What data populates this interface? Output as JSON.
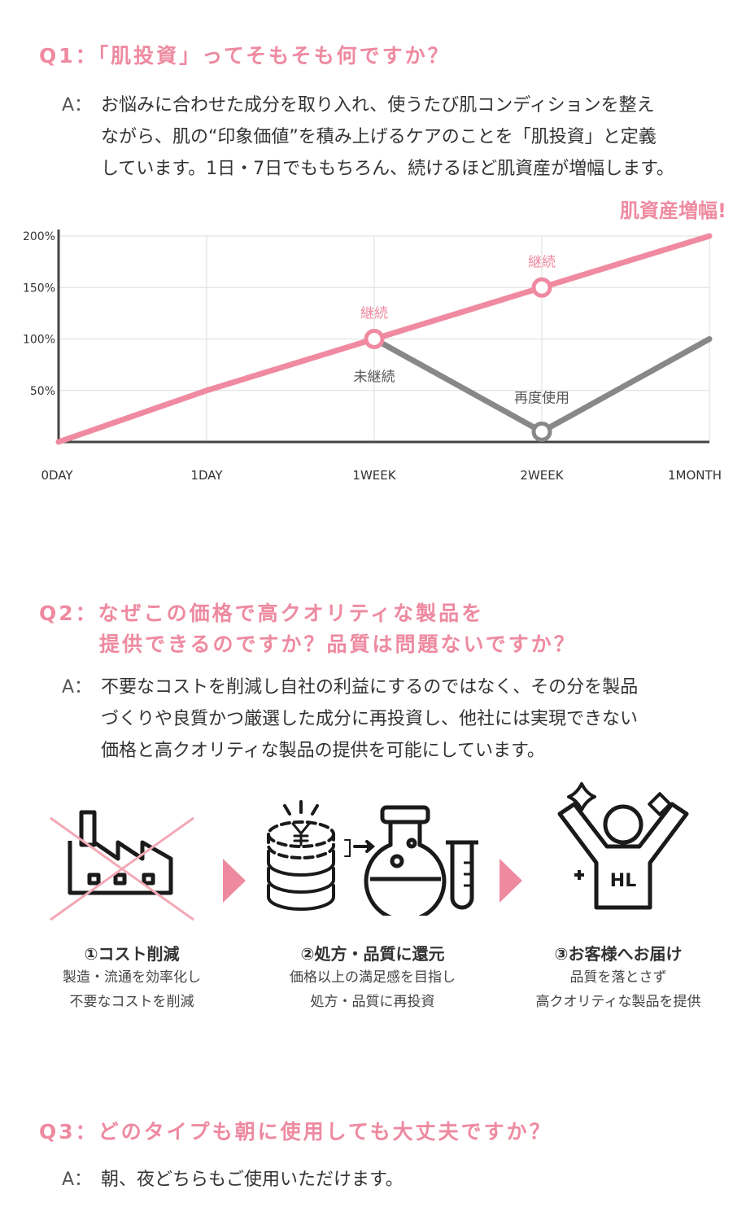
{
  "q1": {
    "question": "Q1：「肌投資」ってそもそも何ですか？",
    "answer_label": "A：",
    "answer_lines": [
      "お悩みに合わせた成分を取り入れ、使うたび肌コンディションを整え",
      "ながら、肌の“印象価値”を積み上げるケアのことを「肌投資」と定義",
      "しています。1日・7日でももちろん、続けるほど肌資産が増幅します。"
    ]
  },
  "chart_data": {
    "type": "line",
    "title": "肌資産増幅!",
    "categories": [
      "0DAY",
      "1DAY",
      "1WEEK",
      "2WEEK",
      "1MONTH"
    ],
    "y_ticks": [
      "50%",
      "100%",
      "150%",
      "200%"
    ],
    "ylim": [
      0,
      200
    ],
    "grid": true,
    "series": [
      {
        "name": "継続",
        "color": "#ef8aa1",
        "values": [
          0,
          50,
          100,
          150,
          200
        ]
      },
      {
        "name": "未継続",
        "color": "#888888",
        "values": [
          null,
          null,
          100,
          10,
          100
        ]
      }
    ],
    "markers": [
      {
        "series": 0,
        "index": 2
      },
      {
        "series": 0,
        "index": 3
      },
      {
        "series": 1,
        "index": 3
      }
    ],
    "annotations": [
      {
        "text": "継続",
        "series": 0,
        "index": 2,
        "color": "#ef8aa1"
      },
      {
        "text": "継続",
        "series": 0,
        "index": 3,
        "color": "#ef8aa1"
      },
      {
        "text": "未継続",
        "series": 1,
        "index": 2,
        "color": "#555555"
      },
      {
        "text": "再度使用",
        "series": 1,
        "index": 3,
        "color": "#555555"
      }
    ]
  },
  "q2": {
    "question_lines": [
      "Q2：なぜこの価格で高クオリティな製品を",
      "提供できるのですか？品質は問題ないですか？"
    ],
    "answer_label": "A：",
    "answer_lines": [
      "不要なコストを削減し自社の利益にするのではなく、その分を製品",
      "づくりや良質かつ厳選した成分に再投資し、他社には実現できない",
      "価格と高クオリティな製品の提供を可能にしています。"
    ]
  },
  "steps": [
    {
      "title": "①コスト削減",
      "lines": [
        "製造・流通を効率化し",
        "不要なコストを削減"
      ]
    },
    {
      "title": "②処方・品質に還元",
      "lines": [
        "価格以上の満足感を目指し",
        "処方・品質に再投資"
      ]
    },
    {
      "title": "③お客様へお届け",
      "lines": [
        "品質を落とさず",
        "高クオリティな製品を提供"
      ]
    }
  ],
  "icons": {
    "factory": "factory-crossed-icon",
    "coins": "yen-coins-icon",
    "flask": "flask-icon",
    "tube": "test-tube-icon",
    "person": "happy-person-icon",
    "person_badge": "HL"
  },
  "q3": {
    "question": "Q3：どのタイプも朝に使用しても大丈夫ですか？",
    "answer_label": "A：",
    "answer_lines": [
      "朝、夜どちらもご使用いただけます。"
    ]
  }
}
